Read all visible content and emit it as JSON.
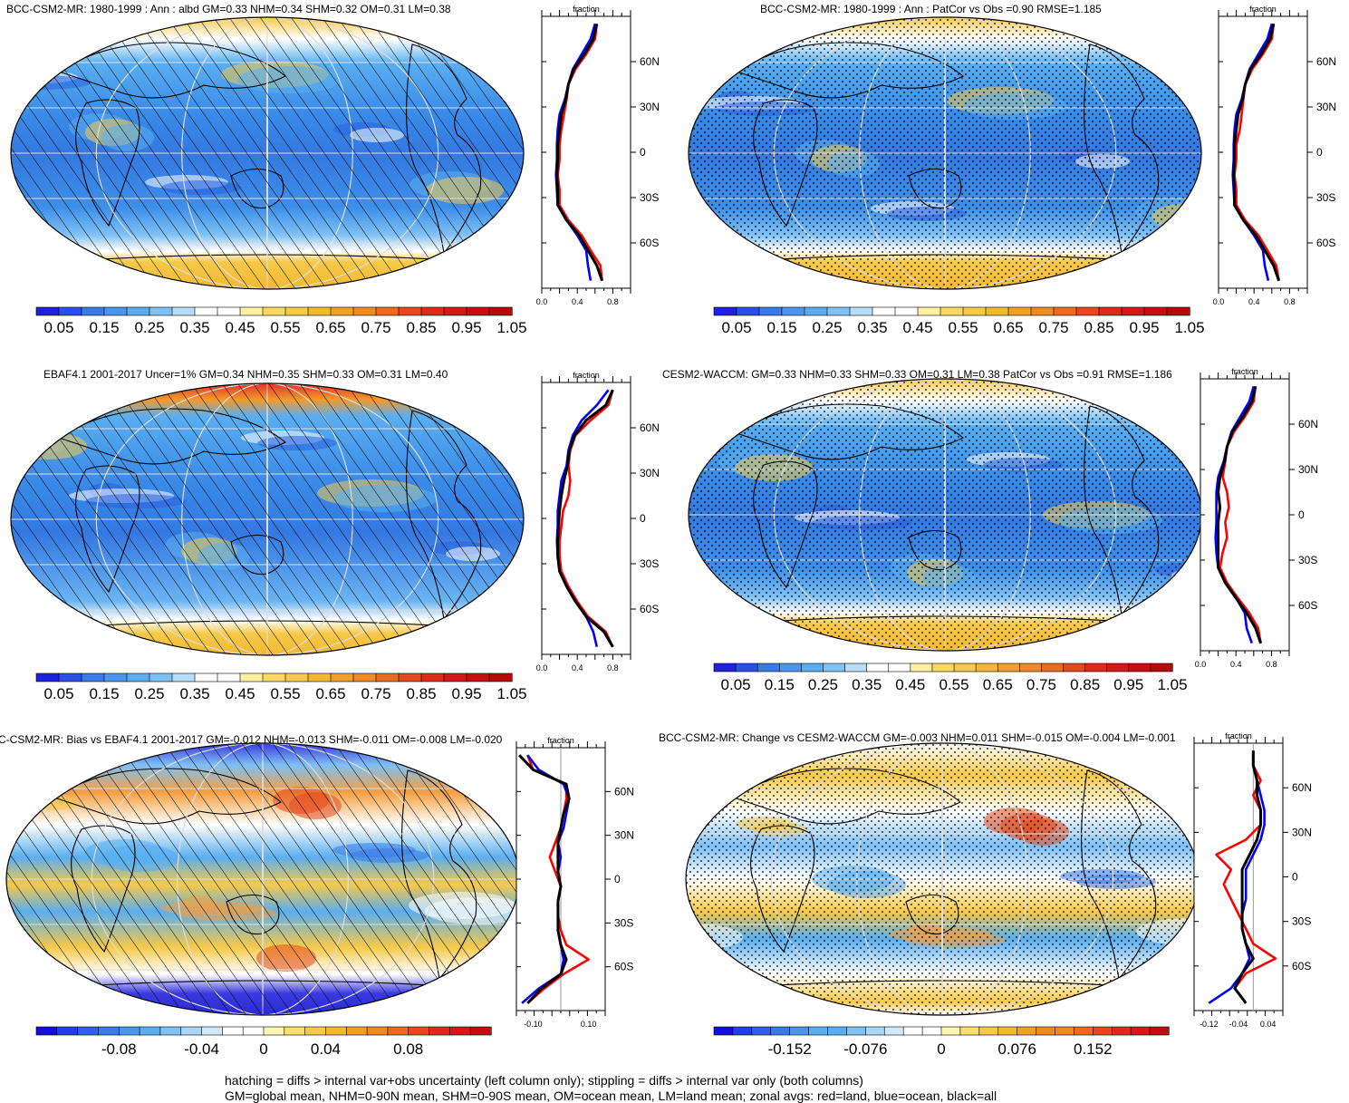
{
  "latitude_ticks": [
    "60N",
    "30N",
    "0",
    "30S",
    "60S"
  ],
  "profile_axis_label": "fraction",
  "colors": {
    "land": "#ff0000",
    "ocean": "#0000ff",
    "all": "#000000"
  },
  "panels": [
    {
      "id": "p1",
      "title": "BCC-CSM2-MR: 1980-1999 : Ann : albd GM=0.33 NHM=0.34 SHM=0.32 OM=0.31 LM=0.38",
      "colorbar_labels": [
        "0.05",
        "0.15",
        "0.25",
        "0.35",
        "0.45",
        "0.55",
        "0.65",
        "0.75",
        "0.85",
        "0.95",
        "1.05"
      ],
      "profile_ticks": [
        "0.0",
        "0.4",
        "0.8"
      ],
      "overlay": "hatch"
    },
    {
      "id": "p2",
      "title": "BCC-CSM2-MR: 1980-1999 : Ann : PatCor vs Obs =0.90 RMSE=1.185",
      "colorbar_labels": [
        "0.05",
        "0.15",
        "0.25",
        "0.35",
        "0.45",
        "0.55",
        "0.65",
        "0.75",
        "0.85",
        "0.95",
        "1.05"
      ],
      "profile_ticks": [
        "0.0",
        "0.4",
        "0.8"
      ],
      "overlay": "stipple"
    },
    {
      "id": "p3",
      "title": "EBAF4.1 2001-2017 Uncer=1% GM=0.34 NHM=0.35 SHM=0.33 OM=0.31 LM=0.40",
      "colorbar_labels": [
        "0.05",
        "0.15",
        "0.25",
        "0.35",
        "0.45",
        "0.55",
        "0.65",
        "0.75",
        "0.85",
        "0.95",
        "1.05"
      ],
      "profile_ticks": [
        "0.0",
        "0.4",
        "0.8"
      ],
      "overlay": "hatch"
    },
    {
      "id": "p4",
      "title": "CESM2-WACCM: GM=0.33 NHM=0.33 SHM=0.33 OM=0.31 LM=0.38 PatCor vs Obs =0.91 RMSE=1.186",
      "colorbar_labels": [
        "0.05",
        "0.15",
        "0.25",
        "0.35",
        "0.45",
        "0.55",
        "0.65",
        "0.75",
        "0.85",
        "0.95",
        "1.05"
      ],
      "profile_ticks": [
        "0.0",
        "0.4",
        "0.8"
      ],
      "overlay": "stipple"
    },
    {
      "id": "p5",
      "title": "C-CSM2-MR: Bias vs EBAF4.1 2001-2017 GM=-0.012 NHM=-0.013 SHM=-0.011 OM=-0.008 LM=-0.020",
      "colorbar_labels": [
        "-0.08",
        "-0.04",
        "0",
        "0.04",
        "0.08"
      ],
      "profile_ticks": [
        "-0.10",
        "0.10"
      ],
      "overlay": "hatch"
    },
    {
      "id": "p6",
      "title": "BCC-CSM2-MR: Change vs CESM2-WACCM GM=-0.003 NHM=0.011 SHM=-0.015 OM=-0.004 LM=-0.001",
      "colorbar_labels": [
        "-0.152",
        "-0.076",
        "0",
        "0.076",
        "0.152"
      ],
      "profile_ticks": [
        "-0.12",
        "-0.04",
        "0.04"
      ],
      "overlay": "stipple"
    }
  ],
  "footer": {
    "line1": "hatching = diffs > internal var+obs uncertainty (left column only); stippling = diffs > internal var only (both columns)",
    "line2": "GM=global mean, NHM=0-90N mean, SHM=0-90S mean, OM=ocean mean, LM=land mean; zonal avgs: red=land, blue=ocean, black=all"
  },
  "chart_data": [
    {
      "type": "line",
      "title": "BCC-CSM2-MR: 1980-1999 : Ann : albd GM=0.33 NHM=0.34 SHM=0.32 OM=0.31 LM=0.38",
      "xlabel": "fraction",
      "xlim": [
        0,
        1.0
      ],
      "ylim": [
        -90,
        90
      ],
      "y": [
        -85,
        -75,
        -65,
        -55,
        -45,
        -35,
        -25,
        -15,
        -5,
        5,
        15,
        25,
        35,
        45,
        55,
        65,
        75,
        85
      ],
      "series": [
        {
          "name": "land",
          "values": [
            0.68,
            0.66,
            0.55,
            0.45,
            0.3,
            0.2,
            0.2,
            0.18,
            0.2,
            0.2,
            0.22,
            0.25,
            0.28,
            0.3,
            0.38,
            0.5,
            0.6,
            0.62
          ]
        },
        {
          "name": "ocean",
          "values": [
            0.55,
            0.52,
            0.5,
            0.4,
            0.28,
            0.18,
            0.17,
            0.16,
            0.17,
            0.17,
            0.18,
            0.2,
            0.26,
            0.3,
            0.35,
            0.45,
            0.55,
            0.6
          ]
        },
        {
          "name": "all",
          "values": [
            0.68,
            0.62,
            0.52,
            0.42,
            0.28,
            0.18,
            0.18,
            0.17,
            0.18,
            0.18,
            0.2,
            0.22,
            0.27,
            0.3,
            0.36,
            0.48,
            0.58,
            0.62
          ]
        }
      ]
    },
    {
      "type": "line",
      "title": "BCC-CSM2-MR: 1980-1999 : Ann : PatCor vs Obs =0.90 RMSE=1.185",
      "xlabel": "fraction",
      "xlim": [
        0,
        1.0
      ],
      "ylim": [
        -90,
        90
      ],
      "y": [
        -85,
        -75,
        -65,
        -55,
        -45,
        -35,
        -25,
        -15,
        -5,
        5,
        15,
        25,
        35,
        45,
        55,
        65,
        75,
        85
      ],
      "series": [
        {
          "name": "land",
          "values": [
            0.68,
            0.65,
            0.55,
            0.45,
            0.3,
            0.2,
            0.2,
            0.18,
            0.2,
            0.2,
            0.24,
            0.26,
            0.28,
            0.3,
            0.38,
            0.5,
            0.6,
            0.62
          ]
        },
        {
          "name": "ocean",
          "values": [
            0.56,
            0.52,
            0.5,
            0.4,
            0.28,
            0.18,
            0.17,
            0.16,
            0.17,
            0.17,
            0.18,
            0.2,
            0.26,
            0.3,
            0.35,
            0.45,
            0.55,
            0.6
          ]
        },
        {
          "name": "all",
          "values": [
            0.68,
            0.62,
            0.52,
            0.42,
            0.28,
            0.18,
            0.18,
            0.17,
            0.18,
            0.18,
            0.2,
            0.22,
            0.27,
            0.3,
            0.36,
            0.48,
            0.58,
            0.62
          ]
        }
      ]
    },
    {
      "type": "line",
      "title": "EBAF4.1 2001-2017 Uncer=1% GM=0.34 NHM=0.35 SHM=0.33 OM=0.31 LM=0.40",
      "xlabel": "fraction",
      "xlim": [
        0,
        1.0
      ],
      "ylim": [
        -90,
        90
      ],
      "y": [
        -85,
        -75,
        -65,
        -55,
        -45,
        -35,
        -25,
        -15,
        -5,
        5,
        15,
        25,
        35,
        45,
        55,
        65,
        75,
        85
      ],
      "series": [
        {
          "name": "land",
          "values": [
            0.8,
            0.72,
            0.52,
            0.4,
            0.3,
            0.22,
            0.2,
            0.2,
            0.22,
            0.24,
            0.3,
            0.32,
            0.3,
            0.32,
            0.38,
            0.55,
            0.75,
            0.8
          ]
        },
        {
          "name": "ocean",
          "values": [
            0.62,
            0.58,
            0.5,
            0.38,
            0.28,
            0.2,
            0.18,
            0.17,
            0.18,
            0.18,
            0.2,
            0.22,
            0.28,
            0.3,
            0.35,
            0.45,
            0.62,
            0.75
          ]
        },
        {
          "name": "all",
          "values": [
            0.8,
            0.7,
            0.5,
            0.38,
            0.28,
            0.2,
            0.18,
            0.18,
            0.19,
            0.2,
            0.22,
            0.25,
            0.29,
            0.31,
            0.37,
            0.5,
            0.72,
            0.8
          ]
        }
      ]
    },
    {
      "type": "line",
      "title": "CESM2-WACCM: GM=0.33 NHM=0.33 SHM=0.33 OM=0.31 LM=0.38 PatCor vs Obs =0.91 RMSE=1.186",
      "xlabel": "fraction",
      "xlim": [
        0,
        1.0
      ],
      "ylim": [
        -90,
        90
      ],
      "y": [
        -85,
        -75,
        -65,
        -55,
        -45,
        -35,
        -25,
        -15,
        -5,
        5,
        15,
        25,
        35,
        45,
        55,
        65,
        75,
        85
      ],
      "series": [
        {
          "name": "land",
          "values": [
            0.68,
            0.65,
            0.55,
            0.42,
            0.3,
            0.22,
            0.25,
            0.3,
            0.28,
            0.32,
            0.3,
            0.25,
            0.28,
            0.3,
            0.38,
            0.5,
            0.6,
            0.62
          ]
        },
        {
          "name": "ocean",
          "values": [
            0.58,
            0.52,
            0.5,
            0.4,
            0.28,
            0.2,
            0.18,
            0.17,
            0.18,
            0.18,
            0.18,
            0.2,
            0.26,
            0.3,
            0.35,
            0.45,
            0.55,
            0.6
          ]
        },
        {
          "name": "all",
          "values": [
            0.68,
            0.62,
            0.52,
            0.4,
            0.28,
            0.2,
            0.2,
            0.2,
            0.2,
            0.22,
            0.2,
            0.22,
            0.27,
            0.3,
            0.36,
            0.48,
            0.58,
            0.62
          ]
        }
      ]
    },
    {
      "type": "line",
      "title": "C-CSM2-MR: Bias vs EBAF4.1 2001-2017 GM=-0.012 NHM=-0.013 SHM=-0.011 OM=-0.008 LM=-0.020",
      "xlabel": "fraction",
      "xlim": [
        -0.16,
        0.16
      ],
      "ylim": [
        -90,
        90
      ],
      "y": [
        -85,
        -75,
        -65,
        -55,
        -45,
        -35,
        -25,
        -15,
        -5,
        5,
        15,
        25,
        35,
        45,
        55,
        65,
        75,
        85
      ],
      "series": [
        {
          "name": "land",
          "values": [
            -0.12,
            -0.06,
            0.01,
            0.1,
            0.02,
            0.0,
            -0.01,
            -0.01,
            0.0,
            -0.02,
            -0.04,
            -0.02,
            0.0,
            0.01,
            0.02,
            0.02,
            -0.1,
            -0.12
          ]
        },
        {
          "name": "ocean",
          "values": [
            -0.14,
            -0.08,
            0.0,
            0.01,
            0.0,
            -0.01,
            -0.01,
            -0.01,
            0.0,
            -0.01,
            0.0,
            -0.01,
            0.01,
            0.02,
            0.03,
            0.01,
            -0.08,
            -0.12
          ]
        },
        {
          "name": "all",
          "values": [
            -0.12,
            -0.07,
            0.0,
            0.02,
            0.0,
            -0.01,
            -0.01,
            -0.01,
            0.0,
            -0.01,
            -0.01,
            -0.01,
            0.0,
            0.01,
            0.03,
            0.02,
            -0.1,
            -0.15
          ]
        }
      ]
    },
    {
      "type": "line",
      "title": "BCC-CSM2-MR: Change vs CESM2-WACCM GM=-0.003 NHM=0.011 SHM=-0.015 OM=-0.004 LM=-0.001",
      "xlabel": "fraction",
      "xlim": [
        -0.16,
        0.08
      ],
      "ylim": [
        -90,
        90
      ],
      "y": [
        -85,
        -75,
        -65,
        -55,
        -45,
        -35,
        -25,
        -15,
        -5,
        5,
        15,
        25,
        35,
        45,
        55,
        65,
        75,
        85
      ],
      "series": [
        {
          "name": "land",
          "values": [
            -0.02,
            -0.05,
            -0.02,
            0.06,
            0.0,
            -0.02,
            -0.04,
            -0.06,
            -0.08,
            -0.06,
            -0.1,
            -0.02,
            0.02,
            0.02,
            0.0,
            0.02,
            0.0,
            0.0
          ]
        },
        {
          "name": "ocean",
          "values": [
            -0.12,
            -0.06,
            -0.03,
            -0.01,
            -0.02,
            -0.03,
            -0.03,
            -0.02,
            -0.02,
            -0.02,
            0.0,
            0.02,
            0.03,
            0.03,
            0.02,
            0.01,
            0.0,
            0.0
          ]
        },
        {
          "name": "all",
          "values": [
            -0.02,
            -0.05,
            -0.03,
            0.0,
            -0.02,
            -0.03,
            -0.03,
            -0.03,
            -0.03,
            -0.03,
            -0.01,
            0.01,
            0.02,
            0.02,
            0.01,
            0.01,
            0.0,
            0.0
          ]
        }
      ]
    }
  ]
}
